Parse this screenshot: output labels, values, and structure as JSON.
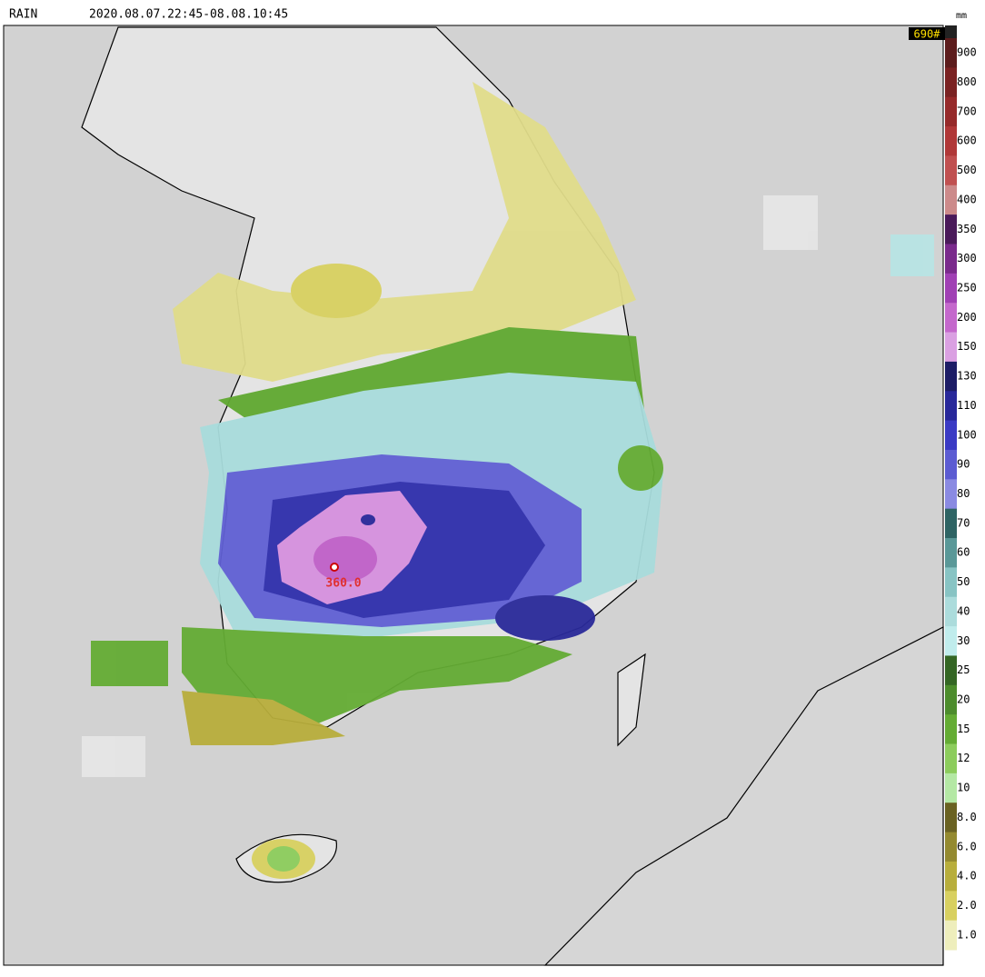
{
  "header": {
    "product": "RAIN",
    "period": "2020.08.07.22:45-08.08.10:45",
    "unit": "mm",
    "max": "690#"
  },
  "annotation": {
    "value": "360.0"
  },
  "legend": [
    {
      "label": "900",
      "color": "#5c1c1c"
    },
    {
      "label": "800",
      "color": "#7a2222"
    },
    {
      "label": "700",
      "color": "#962a2a"
    },
    {
      "label": "600",
      "color": "#b03838"
    },
    {
      "label": "500",
      "color": "#c05050"
    },
    {
      "label": "400",
      "color": "#cc8a8a"
    },
    {
      "label": "350",
      "color": "#4a1a5a"
    },
    {
      "label": "300",
      "color": "#7a2a8c"
    },
    {
      "label": "250",
      "color": "#a040b4"
    },
    {
      "label": "200",
      "color": "#c468cc"
    },
    {
      "label": "150",
      "color": "#daa0e2"
    },
    {
      "label": "130",
      "color": "#1c1c66"
    },
    {
      "label": "110",
      "color": "#28289a"
    },
    {
      "label": "100",
      "color": "#3a3ac4"
    },
    {
      "label": "90",
      "color": "#5c5cd2"
    },
    {
      "label": "80",
      "color": "#8a8ae2"
    },
    {
      "label": "70",
      "color": "#2e6464"
    },
    {
      "label": "60",
      "color": "#5a9898"
    },
    {
      "label": "50",
      "color": "#88c4c4"
    },
    {
      "label": "40",
      "color": "#acdcdc"
    },
    {
      "label": "30",
      "color": "#c0ecec"
    },
    {
      "label": "25",
      "color": "#346624"
    },
    {
      "label": "20",
      "color": "#4c8c2c"
    },
    {
      "label": "15",
      "color": "#64ac34"
    },
    {
      "label": "12",
      "color": "#8ccc5c"
    },
    {
      "label": "10",
      "color": "#b4e8a4"
    },
    {
      "label": "8.0",
      "color": "#6a6222"
    },
    {
      "label": "6.0",
      "color": "#948a30"
    },
    {
      "label": "4.0",
      "color": "#b8ae3c"
    },
    {
      "label": "2.0",
      "color": "#d8d060"
    },
    {
      "label": "1.0",
      "color": "#eeeebc"
    }
  ]
}
